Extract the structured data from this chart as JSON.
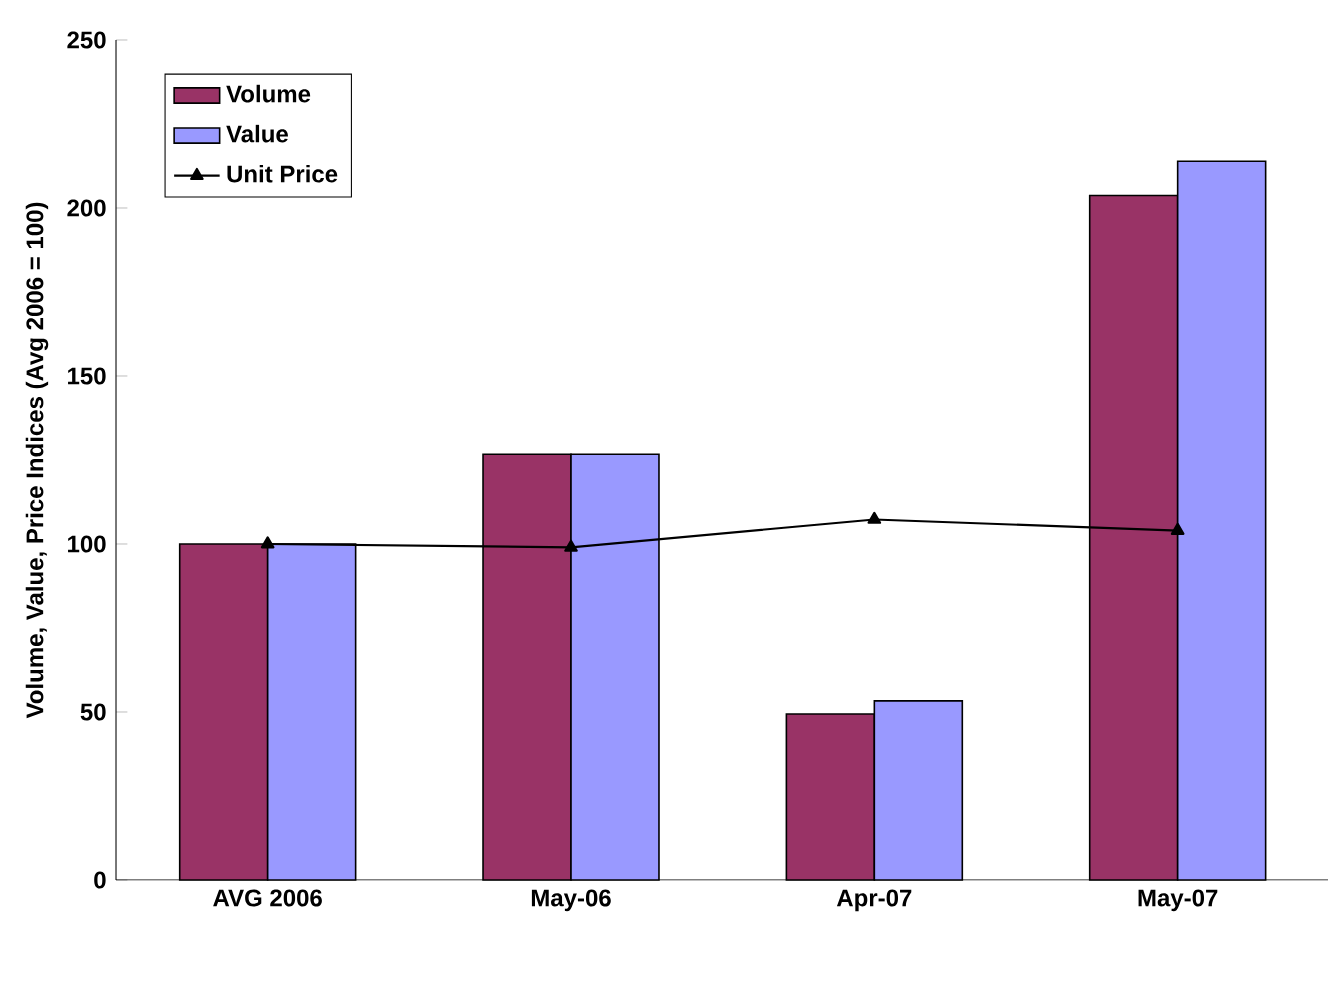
{
  "chart_data": {
    "type": "bar",
    "ylabel": "Volume, Value, Price Indices (Avg 2006 = 100)",
    "categories": [
      "AVG 2006",
      "May-06",
      "Apr-07",
      "May-07"
    ],
    "series": [
      {
        "name": "Volume",
        "color": "#993366",
        "values": [
          100,
          126.7,
          49.4,
          203.7
        ]
      },
      {
        "name": "Value",
        "color": "#9999ff",
        "values": [
          100,
          126.7,
          53.3,
          213.9
        ]
      },
      {
        "name": "Unit Price",
        "type": "line",
        "color": "#000000",
        "marker": "triangle",
        "values": [
          100,
          99,
          107.3,
          104
        ]
      }
    ],
    "ylim": [
      0,
      250
    ],
    "yticks": [
      0,
      50,
      100,
      150,
      200,
      250
    ],
    "legend": "top left"
  }
}
